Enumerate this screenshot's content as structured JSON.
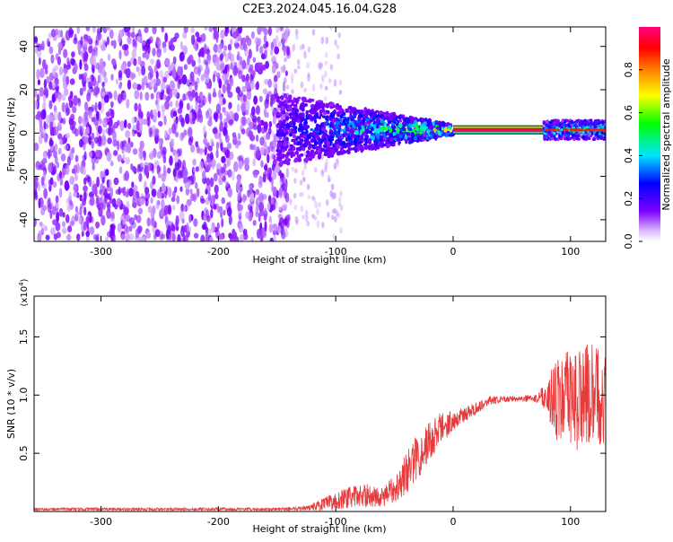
{
  "title": "C2E3.2024.045.16.04.G28",
  "chart_data": [
    {
      "type": "heatmap",
      "xlabel": "Height of straight line (km)",
      "ylabel": "Frequency (Hz)",
      "xlim": [
        -357,
        130
      ],
      "ylim": [
        -50,
        49
      ],
      "xticks": [
        -300,
        -200,
        -100,
        0,
        100
      ],
      "yticks": [
        -40,
        -20,
        0,
        20,
        40
      ],
      "colorbar": {
        "label": "Normalized spectral amplitude",
        "range": [
          0,
          1
        ],
        "ticks": [
          0.0,
          0.2,
          0.4,
          0.6,
          0.8
        ],
        "tick_labels": [
          "0.0",
          "0.2",
          "0.4",
          "0.6",
          "0.8"
        ],
        "colormap": "rainbow (white-violet-blue-cyan-green-yellow-orange-red-magenta)"
      },
      "signal_band": {
        "frequency_center_hz": 1.5,
        "strong_segment_km": [
          0,
          77
        ],
        "noise_region_km": [
          -357,
          -150
        ],
        "transition_region_km": [
          -150,
          0
        ]
      }
    },
    {
      "type": "line",
      "xlabel": "Height of straight line (km)",
      "ylabel": "SNR (10 * v/v)",
      "y_scale_note": "(x10^4)",
      "xlim": [
        -357,
        130
      ],
      "ylim": [
        0,
        1.85
      ],
      "xticks": [
        -300,
        -200,
        -100,
        0,
        100
      ],
      "yticks": [
        0.5,
        1.0,
        1.5
      ],
      "ytick_labels": [
        "0.5",
        "1.0",
        "1.5"
      ],
      "series_color": "#e83a3a",
      "envelope": [
        {
          "x": -357,
          "mean": 0.02,
          "spread": 0.012
        },
        {
          "x": -150,
          "mean": 0.02,
          "spread": 0.012
        },
        {
          "x": -125,
          "mean": 0.03,
          "spread": 0.02
        },
        {
          "x": -110,
          "mean": 0.06,
          "spread": 0.06
        },
        {
          "x": -90,
          "mean": 0.12,
          "spread": 0.09
        },
        {
          "x": -75,
          "mean": 0.14,
          "spread": 0.1
        },
        {
          "x": -60,
          "mean": 0.12,
          "spread": 0.08
        },
        {
          "x": -50,
          "mean": 0.2,
          "spread": 0.12
        },
        {
          "x": -40,
          "mean": 0.33,
          "spread": 0.18
        },
        {
          "x": -30,
          "mean": 0.48,
          "spread": 0.2
        },
        {
          "x": -20,
          "mean": 0.6,
          "spread": 0.18
        },
        {
          "x": -10,
          "mean": 0.72,
          "spread": 0.15
        },
        {
          "x": 0,
          "mean": 0.78,
          "spread": 0.08
        },
        {
          "x": 15,
          "mean": 0.86,
          "spread": 0.06
        },
        {
          "x": 30,
          "mean": 0.95,
          "spread": 0.04
        },
        {
          "x": 50,
          "mean": 0.97,
          "spread": 0.025
        },
        {
          "x": 70,
          "mean": 0.97,
          "spread": 0.03
        },
        {
          "x": 78,
          "mean": 1.0,
          "spread": 0.12
        },
        {
          "x": 90,
          "mean": 0.95,
          "spread": 0.38
        },
        {
          "x": 100,
          "mean": 0.95,
          "spread": 0.45
        },
        {
          "x": 115,
          "mean": 1.0,
          "spread": 0.45
        },
        {
          "x": 130,
          "mean": 0.98,
          "spread": 0.4
        }
      ]
    }
  ]
}
